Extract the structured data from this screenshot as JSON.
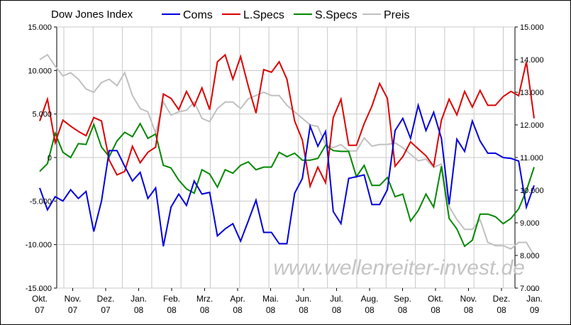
{
  "chart_data": {
    "type": "line",
    "title": "Dow Jones Index",
    "x_labels": [
      [
        "Okt.",
        "07"
      ],
      [
        "Nov.",
        "07"
      ],
      [
        "Dez.",
        "07"
      ],
      [
        "Jan.",
        "08"
      ],
      [
        "Feb.",
        "08"
      ],
      [
        "Mrz.",
        "08"
      ],
      [
        "Apr.",
        "08"
      ],
      [
        "Mai.",
        "08"
      ],
      [
        "Jun.",
        "08"
      ],
      [
        "Jul.",
        "08"
      ],
      [
        "Aug.",
        "08"
      ],
      [
        "Sep.",
        "08"
      ],
      [
        "Okt.",
        "08"
      ],
      [
        "Nov.",
        "08"
      ],
      [
        "Dez.",
        "08"
      ],
      [
        "Jan.",
        "09"
      ]
    ],
    "y_left": {
      "min": -15000,
      "max": 15000,
      "step": 5000,
      "tick_labels": [
        "15.000",
        "10.000",
        "5.000",
        "0",
        "-5.000",
        "-10.000",
        "-15.000"
      ]
    },
    "y_right": {
      "min": 7000,
      "max": 15000,
      "step": 1000,
      "tick_labels": [
        "15.000",
        "14.000",
        "13.000",
        "12.000",
        "11.000",
        "10.000",
        "9.000",
        "8.000",
        "7.000"
      ]
    },
    "grid": true,
    "legend_position": "top",
    "watermark": "www.wellenreiter-invest.de",
    "series": [
      {
        "name": "Coms",
        "color": "#0000dd",
        "axis": "left",
        "values": [
          -3500,
          -6000,
          -4500,
          -5000,
          -3700,
          -4700,
          -3900,
          -8500,
          -5000,
          800,
          800,
          -1000,
          -2700,
          -1700,
          -4700,
          -3500,
          -10200,
          -5700,
          -4200,
          -5500,
          -2700,
          -4200,
          -4000,
          -9000,
          -8200,
          -7600,
          -9600,
          -7300,
          -4900,
          -8600,
          -8600,
          -9900,
          -9900,
          -4100,
          -2400,
          3600,
          1300,
          3000,
          -6200,
          -7600,
          -2400,
          -2200,
          -2000,
          -5400,
          -5400,
          -3700,
          3100,
          4500,
          2200,
          6000,
          3100,
          5200,
          2200,
          -5400,
          2100,
          700,
          4200,
          1900,
          500,
          500,
          0,
          -100,
          -400,
          -5700,
          -3200
        ]
      },
      {
        "name": "L.Specs",
        "color": "#dd0000",
        "axis": "left",
        "values": [
          4200,
          6700,
          1700,
          4300,
          3600,
          3000,
          2500,
          4600,
          4200,
          -300,
          -2000,
          -1600,
          1300,
          -600,
          600,
          1200,
          7300,
          6800,
          5500,
          7600,
          5900,
          8000,
          5500,
          11000,
          11800,
          9000,
          11600,
          8200,
          5100,
          10100,
          9800,
          11000,
          9000,
          4200,
          2000,
          -3300,
          -1100,
          -2900,
          4600,
          6700,
          1400,
          1400,
          3900,
          5900,
          8500,
          6800,
          -1000,
          100,
          1800,
          1000,
          200,
          -1000,
          4300,
          6700,
          4900,
          7600,
          5800,
          7700,
          6000,
          6000,
          7000,
          7600,
          7100,
          11000,
          4500
        ]
      },
      {
        "name": "S.Specs",
        "color": "#008800",
        "axis": "left",
        "values": [
          -1600,
          -700,
          2800,
          600,
          0,
          1600,
          1500,
          3800,
          1200,
          100,
          1900,
          2900,
          2400,
          3900,
          2200,
          2700,
          -900,
          -1200,
          -2600,
          -3600,
          -4100,
          -1400,
          -1900,
          -3400,
          -1400,
          -1800,
          -900,
          -500,
          -1400,
          -1100,
          -1100,
          600,
          100,
          500,
          -300,
          -300,
          -100,
          1400,
          800,
          700,
          700,
          -2200,
          -900,
          -3200,
          -3200,
          -2300,
          -4500,
          -4200,
          -7300,
          -6100,
          -4200,
          -5700,
          -1000,
          -7000,
          -8200,
          -10200,
          -9500,
          -6500,
          -6500,
          -6800,
          -7600,
          -7000,
          -5900,
          -3800,
          -1100
        ]
      },
      {
        "name": "Preis",
        "color": "#c0c0c0",
        "axis": "right",
        "values": [
          14000,
          14150,
          13800,
          13500,
          13600,
          13400,
          13100,
          13000,
          13300,
          13400,
          13200,
          13600,
          12900,
          12500,
          12400,
          11750,
          12700,
          12300,
          12400,
          12450,
          12700,
          12200,
          12100,
          12500,
          12700,
          12700,
          12500,
          12800,
          12900,
          13000,
          12900,
          12900,
          12600,
          12400,
          12200,
          12000,
          11950,
          11400,
          11300,
          11400,
          11200,
          11200,
          11600,
          11350,
          11400,
          11400,
          11450,
          11300,
          11100,
          10900,
          10950,
          10700,
          10800,
          9500,
          9100,
          8800,
          8800,
          9100,
          8400,
          8300,
          8300,
          8200,
          8400,
          8400,
          8000
        ]
      }
    ]
  }
}
